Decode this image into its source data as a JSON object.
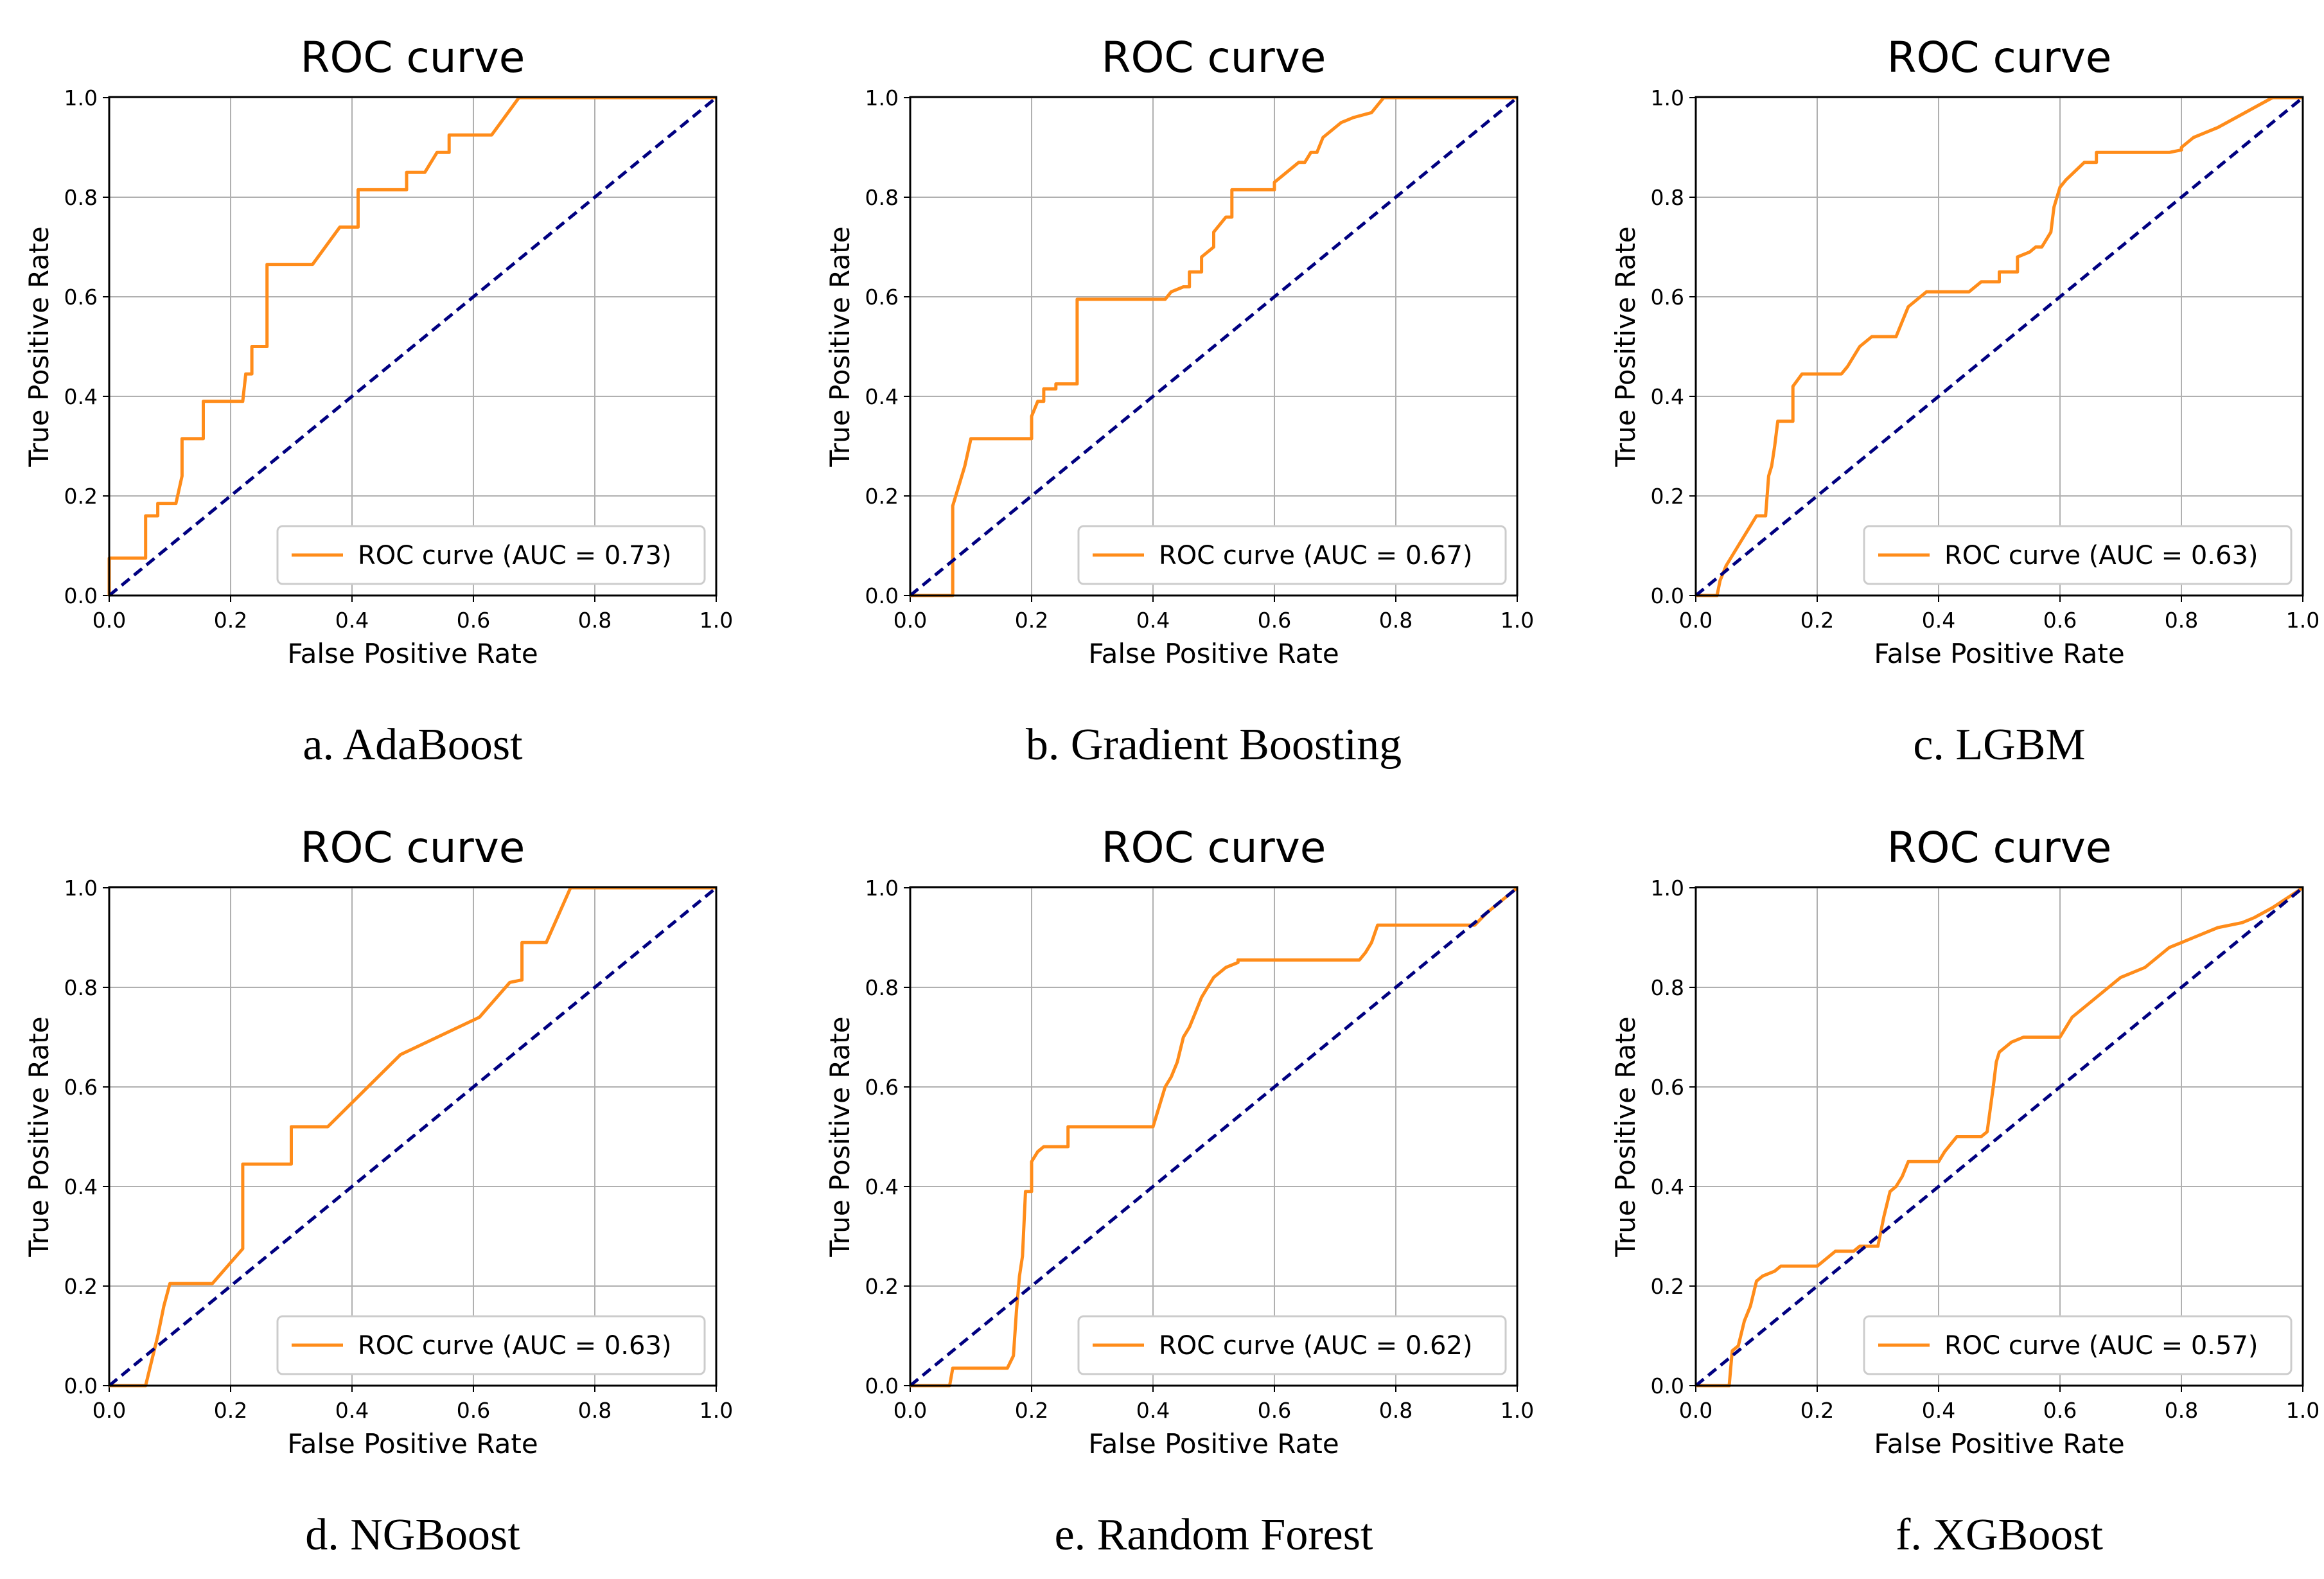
{
  "figure": {
    "background": "#ffffff"
  },
  "colors": {
    "roc": "#ff8c1a",
    "diagonal": "#000080",
    "grid": "#b0b0b0",
    "frame": "#000000"
  },
  "chart_data": [
    {
      "id": "a",
      "type": "line",
      "title": "ROC curve",
      "xlabel": "False Positive Rate",
      "ylabel": "True Positive Rate",
      "caption": "a. AdaBoost",
      "xlim": [
        0,
        1
      ],
      "ylim": [
        0,
        1
      ],
      "xticks": [
        "0.0",
        "0.2",
        "0.4",
        "0.6",
        "0.8",
        "1.0"
      ],
      "yticks": [
        "0.0",
        "0.2",
        "0.4",
        "0.6",
        "0.8",
        "1.0"
      ],
      "grid": true,
      "legend_position": "lower-right",
      "series": [
        {
          "name": "ROC curve (AUC = 0.73)",
          "role": "roc",
          "x": [
            0,
            0,
            0.06,
            0.06,
            0.08,
            0.08,
            0.11,
            0.12,
            0.12,
            0.155,
            0.155,
            0.22,
            0.225,
            0.235,
            0.235,
            0.26,
            0.26,
            0.335,
            0.38,
            0.385,
            0.41,
            0.41,
            0.49,
            0.49,
            0.52,
            0.52,
            0.54,
            0.56,
            0.56,
            0.6,
            0.6,
            0.63,
            0.675,
            1.0
          ],
          "y": [
            0,
            0.075,
            0.075,
            0.16,
            0.16,
            0.185,
            0.185,
            0.24,
            0.315,
            0.315,
            0.39,
            0.39,
            0.445,
            0.445,
            0.5,
            0.5,
            0.665,
            0.665,
            0.74,
            0.74,
            0.74,
            0.815,
            0.815,
            0.85,
            0.85,
            0.85,
            0.89,
            0.89,
            0.925,
            0.925,
            0.925,
            0.925,
            1.0,
            1.0
          ]
        },
        {
          "name": "chance",
          "role": "diagonal",
          "x": [
            0,
            1
          ],
          "y": [
            0,
            1
          ]
        }
      ]
    },
    {
      "id": "b",
      "type": "line",
      "title": "ROC curve",
      "xlabel": "False Positive Rate",
      "ylabel": "True Positive Rate",
      "caption": "b. Gradient Boosting",
      "xlim": [
        0,
        1
      ],
      "ylim": [
        0,
        1
      ],
      "xticks": [
        "0.0",
        "0.2",
        "0.4",
        "0.6",
        "0.8",
        "1.0"
      ],
      "yticks": [
        "0.0",
        "0.2",
        "0.4",
        "0.6",
        "0.8",
        "1.0"
      ],
      "grid": true,
      "legend_position": "lower-right",
      "series": [
        {
          "name": "ROC curve (AUC = 0.67)",
          "role": "roc",
          "x": [
            0,
            0.07,
            0.07,
            0.075,
            0.08,
            0.09,
            0.1,
            0.2,
            0.2,
            0.21,
            0.22,
            0.22,
            0.24,
            0.24,
            0.27,
            0.275,
            0.275,
            0.42,
            0.43,
            0.45,
            0.46,
            0.46,
            0.48,
            0.48,
            0.5,
            0.5,
            0.52,
            0.53,
            0.53,
            0.56,
            0.6,
            0.6,
            0.62,
            0.64,
            0.65,
            0.66,
            0.67,
            0.68,
            0.7,
            0.71,
            0.72,
            0.73,
            0.76,
            0.77,
            0.78,
            1.0
          ],
          "y": [
            0,
            0,
            0.18,
            0.2,
            0.22,
            0.26,
            0.315,
            0.315,
            0.36,
            0.39,
            0.39,
            0.415,
            0.415,
            0.425,
            0.425,
            0.425,
            0.595,
            0.595,
            0.61,
            0.62,
            0.62,
            0.65,
            0.65,
            0.68,
            0.7,
            0.73,
            0.76,
            0.76,
            0.815,
            0.815,
            0.815,
            0.83,
            0.85,
            0.87,
            0.87,
            0.89,
            0.89,
            0.92,
            0.94,
            0.95,
            0.955,
            0.96,
            0.97,
            0.985,
            1.0,
            1.0
          ]
        },
        {
          "name": "chance",
          "role": "diagonal",
          "x": [
            0,
            1
          ],
          "y": [
            0,
            1
          ]
        }
      ]
    },
    {
      "id": "c",
      "type": "line",
      "title": "ROC curve",
      "xlabel": "False Positive Rate",
      "ylabel": "True Positive Rate",
      "caption": "c. LGBM",
      "xlim": [
        0,
        1
      ],
      "ylim": [
        0,
        1
      ],
      "xticks": [
        "0.0",
        "0.2",
        "0.4",
        "0.6",
        "0.8",
        "1.0"
      ],
      "yticks": [
        "0.0",
        "0.2",
        "0.4",
        "0.6",
        "0.8",
        "1.0"
      ],
      "grid": true,
      "legend_position": "lower-right",
      "series": [
        {
          "name": "ROC curve (AUC = 0.63)",
          "role": "roc",
          "x": [
            0,
            0.035,
            0.04,
            0.05,
            0.06,
            0.08,
            0.09,
            0.1,
            0.115,
            0.12,
            0.125,
            0.13,
            0.135,
            0.135,
            0.16,
            0.16,
            0.175,
            0.24,
            0.25,
            0.26,
            0.27,
            0.27,
            0.29,
            0.33,
            0.34,
            0.35,
            0.37,
            0.38,
            0.395,
            0.45,
            0.47,
            0.47,
            0.5,
            0.5,
            0.53,
            0.53,
            0.55,
            0.56,
            0.57,
            0.58,
            0.585,
            0.59,
            0.6,
            0.61,
            0.61,
            0.64,
            0.64,
            0.66,
            0.66,
            0.7,
            0.78,
            0.8,
            0.8,
            0.82,
            0.86,
            0.89,
            0.92,
            0.95,
            1.0
          ],
          "y": [
            0,
            0,
            0.03,
            0.06,
            0.08,
            0.12,
            0.14,
            0.16,
            0.16,
            0.24,
            0.26,
            0.3,
            0.35,
            0.35,
            0.35,
            0.42,
            0.445,
            0.445,
            0.46,
            0.48,
            0.5,
            0.5,
            0.52,
            0.52,
            0.55,
            0.58,
            0.6,
            0.61,
            0.61,
            0.61,
            0.63,
            0.63,
            0.63,
            0.65,
            0.65,
            0.68,
            0.69,
            0.7,
            0.7,
            0.72,
            0.73,
            0.78,
            0.82,
            0.835,
            0.835,
            0.87,
            0.87,
            0.87,
            0.89,
            0.89,
            0.89,
            0.895,
            0.9,
            0.92,
            0.94,
            0.96,
            0.98,
            1.0,
            1.0
          ]
        },
        {
          "name": "chance",
          "role": "diagonal",
          "x": [
            0,
            1
          ],
          "y": [
            0,
            1
          ]
        }
      ]
    },
    {
      "id": "d",
      "type": "line",
      "title": "ROC curve",
      "xlabel": "False Positive Rate",
      "ylabel": "True Positive Rate",
      "caption": "d. NGBoost",
      "xlim": [
        0,
        1
      ],
      "ylim": [
        0,
        1
      ],
      "xticks": [
        "0.0",
        "0.2",
        "0.4",
        "0.6",
        "0.8",
        "1.0"
      ],
      "yticks": [
        "0.0",
        "0.2",
        "0.4",
        "0.6",
        "0.8",
        "1.0"
      ],
      "grid": true,
      "legend_position": "lower-right",
      "series": [
        {
          "name": "ROC curve (AUC = 0.63)",
          "role": "roc",
          "x": [
            0,
            0.06,
            0.08,
            0.09,
            0.1,
            0.17,
            0.22,
            0.22,
            0.3,
            0.3,
            0.36,
            0.48,
            0.61,
            0.66,
            0.68,
            0.68,
            0.72,
            0.76,
            0.76,
            1.0
          ],
          "y": [
            0,
            0,
            0.1,
            0.16,
            0.205,
            0.205,
            0.275,
            0.445,
            0.445,
            0.52,
            0.52,
            0.665,
            0.74,
            0.81,
            0.815,
            0.89,
            0.89,
            1.0,
            1.0,
            1.0
          ]
        },
        {
          "name": "chance",
          "role": "diagonal",
          "x": [
            0,
            1
          ],
          "y": [
            0,
            1
          ]
        }
      ]
    },
    {
      "id": "e",
      "type": "line",
      "title": "ROC curve",
      "xlabel": "False Positive Rate",
      "ylabel": "True Positive Rate",
      "caption": "e. Random Forest",
      "xlim": [
        0,
        1
      ],
      "ylim": [
        0,
        1
      ],
      "xticks": [
        "0.0",
        "0.2",
        "0.4",
        "0.6",
        "0.8",
        "1.0"
      ],
      "yticks": [
        "0.0",
        "0.2",
        "0.4",
        "0.6",
        "0.8",
        "1.0"
      ],
      "grid": true,
      "legend_position": "lower-right",
      "series": [
        {
          "name": "ROC curve (AUC = 0.62)",
          "role": "roc",
          "x": [
            0,
            0.065,
            0.07,
            0.16,
            0.17,
            0.175,
            0.18,
            0.185,
            0.19,
            0.2,
            0.2,
            0.21,
            0.22,
            0.24,
            0.26,
            0.26,
            0.4,
            0.41,
            0.42,
            0.43,
            0.44,
            0.45,
            0.46,
            0.47,
            0.48,
            0.49,
            0.5,
            0.52,
            0.54,
            0.54,
            0.74,
            0.75,
            0.76,
            0.77,
            0.93,
            0.95,
            0.97,
            1.0
          ],
          "y": [
            0,
            0,
            0.035,
            0.035,
            0.06,
            0.15,
            0.22,
            0.26,
            0.39,
            0.39,
            0.45,
            0.47,
            0.48,
            0.48,
            0.48,
            0.52,
            0.52,
            0.56,
            0.6,
            0.62,
            0.65,
            0.7,
            0.72,
            0.75,
            0.78,
            0.8,
            0.82,
            0.84,
            0.85,
            0.855,
            0.855,
            0.87,
            0.89,
            0.925,
            0.925,
            0.95,
            0.97,
            1.0
          ]
        },
        {
          "name": "chance",
          "role": "diagonal",
          "x": [
            0,
            1
          ],
          "y": [
            0,
            1
          ]
        }
      ]
    },
    {
      "id": "f",
      "type": "line",
      "title": "ROC curve",
      "xlabel": "False Positive Rate",
      "ylabel": "True Positive Rate",
      "caption": "f. XGBoost",
      "xlim": [
        0,
        1
      ],
      "ylim": [
        0,
        1
      ],
      "xticks": [
        "0.0",
        "0.2",
        "0.4",
        "0.6",
        "0.8",
        "1.0"
      ],
      "yticks": [
        "0.0",
        "0.2",
        "0.4",
        "0.6",
        "0.8",
        "1.0"
      ],
      "grid": true,
      "legend_position": "lower-right",
      "series": [
        {
          "name": "ROC curve (AUC = 0.57)",
          "role": "roc",
          "x": [
            0,
            0.055,
            0.06,
            0.07,
            0.08,
            0.09,
            0.1,
            0.11,
            0.13,
            0.14,
            0.2,
            0.21,
            0.22,
            0.23,
            0.26,
            0.27,
            0.3,
            0.31,
            0.32,
            0.33,
            0.34,
            0.35,
            0.36,
            0.4,
            0.41,
            0.43,
            0.44,
            0.47,
            0.48,
            0.49,
            0.495,
            0.5,
            0.52,
            0.54,
            0.56,
            0.6,
            0.62,
            0.64,
            0.66,
            0.68,
            0.7,
            0.72,
            0.74,
            0.76,
            0.78,
            0.8,
            0.82,
            0.86,
            0.9,
            0.92,
            0.95,
            1.0
          ],
          "y": [
            0,
            0,
            0.07,
            0.08,
            0.13,
            0.16,
            0.21,
            0.22,
            0.23,
            0.24,
            0.24,
            0.25,
            0.26,
            0.27,
            0.27,
            0.28,
            0.28,
            0.34,
            0.39,
            0.4,
            0.42,
            0.45,
            0.45,
            0.45,
            0.47,
            0.5,
            0.5,
            0.5,
            0.51,
            0.6,
            0.65,
            0.67,
            0.69,
            0.7,
            0.7,
            0.7,
            0.74,
            0.76,
            0.78,
            0.8,
            0.82,
            0.83,
            0.84,
            0.86,
            0.88,
            0.89,
            0.9,
            0.92,
            0.93,
            0.94,
            0.96,
            1.0
          ]
        },
        {
          "name": "chance",
          "role": "diagonal",
          "x": [
            0,
            1
          ],
          "y": [
            0,
            1
          ]
        }
      ]
    }
  ]
}
